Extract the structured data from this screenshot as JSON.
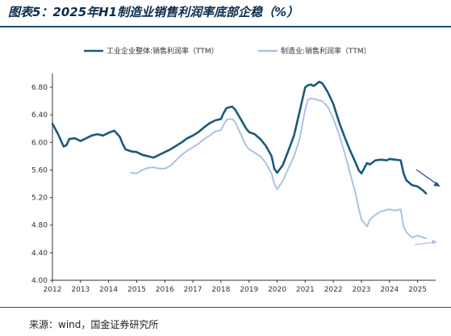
{
  "title": "图表5：2025年H1制造业销售利润率底部企稳（%）",
  "source": "来源：wind，国金证券研究所",
  "colors": {
    "series_primary": "#1b5a7a",
    "series_secondary": "#aac3e6",
    "arrow_down": "#2e4a8a",
    "arrow_up": "#aac3e6",
    "rule": "#1f4e79"
  },
  "chart_data": {
    "type": "line",
    "title": "",
    "xlabel": "",
    "ylabel": "",
    "xlim": [
      2012.0,
      2025.5
    ],
    "ylim": [
      4.0,
      7.0
    ],
    "grid": false,
    "legend_position": "top",
    "x_ticks": [
      "2012",
      "2013",
      "2014",
      "2015",
      "2016",
      "2017",
      "2018",
      "2019",
      "2020",
      "2021",
      "2022",
      "2023",
      "2024",
      "2025"
    ],
    "y_ticks": [
      "4.00",
      "4.40",
      "4.80",
      "5.20",
      "5.60",
      "6.00",
      "6.40",
      "6.80"
    ],
    "series": [
      {
        "name": "工业企业整体:销售利润率（TTM）",
        "x": [
          2012.0,
          2012.2,
          2012.4,
          2012.5,
          2012.6,
          2012.8,
          2013.0,
          2013.1,
          2013.2,
          2013.4,
          2013.6,
          2013.8,
          2014.0,
          2014.2,
          2014.4,
          2014.5,
          2014.6,
          2014.8,
          2015.0,
          2015.2,
          2015.4,
          2015.6,
          2015.8,
          2016.0,
          2016.2,
          2016.4,
          2016.6,
          2016.8,
          2017.0,
          2017.2,
          2017.4,
          2017.6,
          2017.8,
          2018.0,
          2018.1,
          2018.2,
          2018.4,
          2018.5,
          2018.7,
          2018.9,
          2019.0,
          2019.2,
          2019.4,
          2019.6,
          2019.8,
          2019.9,
          2020.0,
          2020.2,
          2020.4,
          2020.6,
          2020.8,
          2021.0,
          2021.1,
          2021.2,
          2021.3,
          2021.4,
          2021.5,
          2021.6,
          2021.7,
          2021.8,
          2022.0,
          2022.2,
          2022.4,
          2022.6,
          2022.8,
          2022.9,
          2023.0,
          2023.2,
          2023.3,
          2023.5,
          2023.7,
          2023.9,
          2024.0,
          2024.2,
          2024.4,
          2024.5,
          2024.6,
          2024.8,
          2025.0,
          2025.2,
          2025.3
        ],
        "values": [
          6.27,
          6.12,
          5.94,
          5.96,
          6.05,
          6.06,
          6.02,
          6.04,
          6.06,
          6.1,
          6.12,
          6.1,
          6.14,
          6.17,
          6.08,
          5.98,
          5.9,
          5.87,
          5.86,
          5.82,
          5.8,
          5.78,
          5.82,
          5.86,
          5.9,
          5.95,
          6.0,
          6.06,
          6.1,
          6.15,
          6.22,
          6.28,
          6.32,
          6.34,
          6.43,
          6.5,
          6.52,
          6.48,
          6.34,
          6.2,
          6.15,
          6.12,
          6.05,
          5.95,
          5.8,
          5.62,
          5.56,
          5.67,
          5.88,
          6.1,
          6.45,
          6.8,
          6.83,
          6.84,
          6.82,
          6.85,
          6.88,
          6.86,
          6.8,
          6.73,
          6.56,
          6.3,
          6.08,
          5.88,
          5.7,
          5.6,
          5.55,
          5.7,
          5.68,
          5.74,
          5.75,
          5.74,
          5.76,
          5.75,
          5.74,
          5.55,
          5.45,
          5.38,
          5.36,
          5.3,
          5.26
        ]
      },
      {
        "name": "制造业:销售利润率（TTM）",
        "x": [
          2014.8,
          2015.0,
          2015.2,
          2015.4,
          2015.6,
          2015.8,
          2016.0,
          2016.2,
          2016.4,
          2016.6,
          2016.8,
          2017.0,
          2017.2,
          2017.4,
          2017.6,
          2017.8,
          2018.0,
          2018.1,
          2018.2,
          2018.4,
          2018.5,
          2018.7,
          2018.9,
          2019.0,
          2019.2,
          2019.4,
          2019.6,
          2019.8,
          2019.9,
          2020.0,
          2020.2,
          2020.4,
          2020.6,
          2020.8,
          2021.0,
          2021.1,
          2021.2,
          2021.4,
          2021.6,
          2021.8,
          2022.0,
          2022.2,
          2022.4,
          2022.6,
          2022.8,
          2022.9,
          2023.0,
          2023.2,
          2023.3,
          2023.5,
          2023.7,
          2023.9,
          2024.0,
          2024.2,
          2024.4,
          2024.5,
          2024.6,
          2024.8,
          2025.0,
          2025.2,
          2025.3
        ],
        "values": [
          5.56,
          5.55,
          5.6,
          5.63,
          5.64,
          5.62,
          5.62,
          5.66,
          5.74,
          5.82,
          5.88,
          5.93,
          5.98,
          6.05,
          6.1,
          6.16,
          6.18,
          6.26,
          6.33,
          6.34,
          6.3,
          6.12,
          5.95,
          5.9,
          5.85,
          5.8,
          5.7,
          5.55,
          5.4,
          5.32,
          5.44,
          5.62,
          5.8,
          6.05,
          6.48,
          6.62,
          6.64,
          6.62,
          6.6,
          6.52,
          6.35,
          6.12,
          5.85,
          5.55,
          5.25,
          5.05,
          4.88,
          4.78,
          4.88,
          4.95,
          5.0,
          5.02,
          5.03,
          5.01,
          5.03,
          4.78,
          4.7,
          4.62,
          4.65,
          4.62,
          4.61
        ]
      }
    ]
  }
}
